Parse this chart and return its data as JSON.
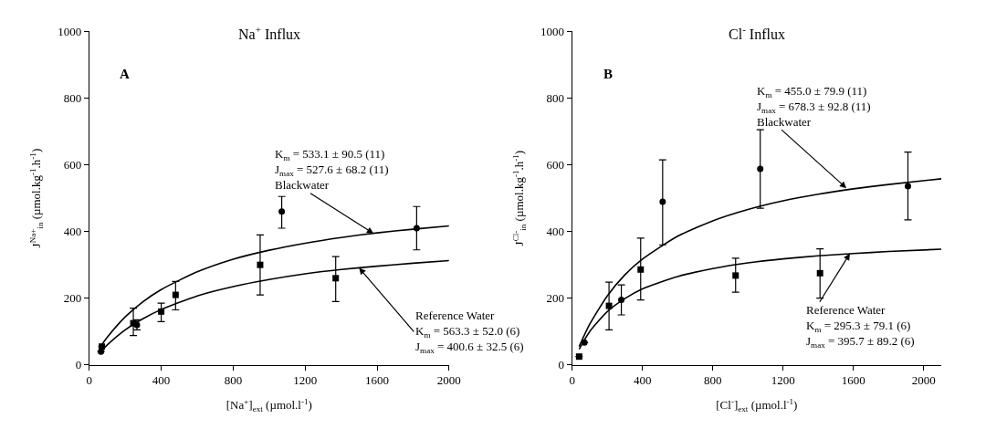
{
  "chart_data": [
    {
      "type": "scatter",
      "title": "Na$^{+}$ Influx",
      "xlabel": "[Na$^{+}$]$_{ext}$ (µmol.l$^{-1}$)",
      "ylabel": "J$^{Na+}$$_{in}$ (µmol.kg$^{-1}$.h$^{-1}$)",
      "xlim": [
        0,
        2000
      ],
      "ylim": [
        0,
        1000
      ],
      "xticks": [
        0,
        400,
        800,
        1200,
        1600,
        2000
      ],
      "yticks": [
        0,
        200,
        400,
        600,
        800,
        1000
      ],
      "series": [
        {
          "marker": "circle",
          "color": "#000000",
          "x": [
            65,
            265,
            1070,
            1820
          ],
          "values": [
            40,
            120,
            460,
            410
          ],
          "errors": [
            null,
            [
              105,
              135
            ],
            [
              410,
              505
            ],
            [
              345,
              475
            ]
          ]
        },
        {
          "marker": "square",
          "color": "#000000",
          "x": [
            70,
            245,
            400,
            480,
            950,
            1370
          ],
          "values": [
            55,
            125,
            160,
            210,
            300,
            260
          ],
          "errors": [
            null,
            [
              88,
              170
            ],
            [
              130,
              185
            ],
            [
              165,
              250
            ],
            [
              210,
              390
            ],
            [
              190,
              325
            ]
          ]
        },
        {
          "type": "line",
          "marker": "none",
          "color": "#000000",
          "x": [
            70,
            100,
            200,
            300,
            400,
            600,
            800,
            1000,
            1200,
            1400,
            1600,
            1800,
            2000
          ],
          "values": [
            61,
            83,
            144,
            190,
            226,
            279,
            317,
            344,
            365,
            382,
            396,
            407,
            417
          ]
        },
        {
          "type": "line",
          "marker": "none",
          "color": "#000000",
          "x": [
            70,
            100,
            200,
            300,
            400,
            600,
            800,
            1000,
            1200,
            1400,
            1600,
            1800,
            2000
          ],
          "values": [
            44,
            60,
            105,
            139,
            166,
            207,
            235,
            256,
            273,
            286,
            296,
            305,
            313
          ]
        }
      ],
      "annotations": [
        "A",
        {
          "text": "K$_{m}$ = 533.1 ± 90.5 (11)\nJ$_{max}$ = 527.6 ± 68.2 (11)\nBlackwater",
          "x": 1580,
          "y": 394
        },
        {
          "text": "Reference Water\nK$_{m}$ = 563.3 ± 52.0 (6)\nJ$_{max}$ = 400.6 ± 32.5 (6)",
          "x": 1500,
          "y": 291
        }
      ]
    },
    {
      "type": "scatter",
      "title": "Cl$^{-}$ Influx",
      "xlabel": "[Cl$^{-}$]$_{ext}$ (µmol.l$^{-1}$)",
      "ylabel": "J$^{Cl-}$$_{in}$ (µmol.kg$^{-1}$.h$^{-1}$)",
      "xlim": [
        0,
        2100
      ],
      "ylim": [
        0,
        1000
      ],
      "xticks": [
        0,
        400,
        800,
        1200,
        1600,
        2000
      ],
      "yticks": [
        0,
        200,
        400,
        600,
        800,
        1000
      ],
      "series": [
        {
          "marker": "circle",
          "color": "#000000",
          "x": [
            70,
            280,
            515,
            1070,
            1910
          ],
          "values": [
            67,
            195,
            489,
            588,
            536
          ],
          "errors": [
            null,
            [
              150,
              240
            ],
            [
              360,
              615
            ],
            [
              470,
              705
            ],
            [
              435,
              638
            ]
          ]
        },
        {
          "marker": "square",
          "color": "#000000",
          "x": [
            40,
            210,
            390,
            930,
            1410
          ],
          "values": [
            25,
            177,
            286,
            268,
            275
          ],
          "errors": [
            null,
            [
              105,
              248
            ],
            [
              195,
              380
            ],
            [
              218,
              320
            ],
            [
              200,
              348
            ]
          ]
        },
        {
          "type": "line",
          "marker": "none",
          "color": "#000000",
          "x": [
            40,
            100,
            200,
            300,
            400,
            600,
            800,
            1000,
            1200,
            1400,
            1600,
            1800,
            2100
          ],
          "values": [
            55,
            122,
            207,
            270,
            317,
            386,
            432,
            466,
            492,
            512,
            528,
            541,
            558
          ]
        },
        {
          "type": "line",
          "marker": "none",
          "color": "#000000",
          "x": [
            40,
            100,
            200,
            300,
            400,
            600,
            800,
            1000,
            1200,
            1400,
            1600,
            1800,
            2100
          ],
          "values": [
            47,
            100,
            160,
            199,
            228,
            265,
            289,
            306,
            318,
            327,
            334,
            340,
            347
          ]
        }
      ],
      "annotations": [
        "B",
        {
          "text": "K$_{m}$ = 455.0 ± 79.9 (11)\nJ$_{max}$ = 678.3 ± 92.8 (11)\nBlackwater",
          "x": 1560,
          "y": 530
        },
        {
          "text": "Reference Water\nK$_{m}$ = 295.3 ± 79.1 (6)\nJ$_{max}$ = 395.7 ± 89.2 (6)",
          "x": 1580,
          "y": 334
        }
      ]
    }
  ]
}
